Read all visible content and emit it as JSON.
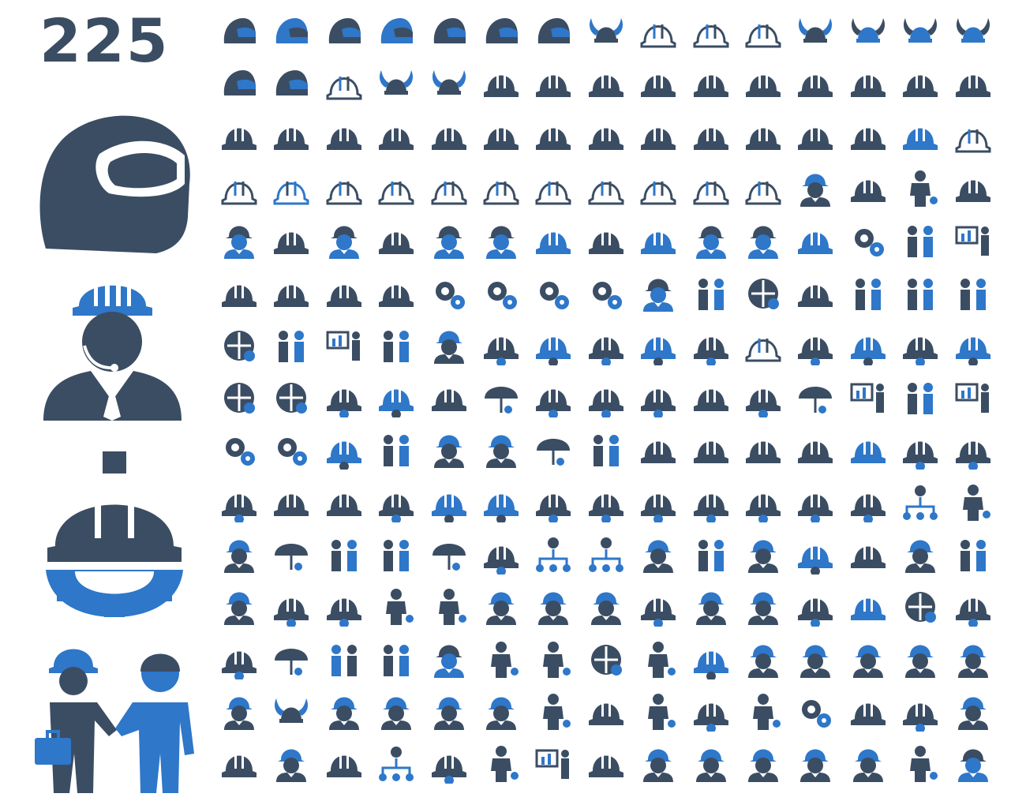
{
  "header": {
    "count": "225"
  },
  "palette": {
    "gray": "#3b4d63",
    "blue": "#2e77c9",
    "white": "#ffffff"
  },
  "big_icons": [
    "motorcycle-helmet",
    "worker-with-headset-and-hard-hat",
    "hard-hat-on-gear",
    "handshake-businessman-and-worker"
  ],
  "grid": {
    "rows": [
      [
        "moto-helmet",
        "moto-helmet-blue-visor",
        "bike-helmet",
        "bike-helmet-blue",
        "jockey-helmet",
        "cap-helmet",
        "jockey-helmet-dark",
        "viking-helmet-rivets",
        "viking-helmet-outline",
        "viking-helmet-outline",
        "viking-helmet-outline",
        "viking-helmet-dark",
        "viking-helmet-blue",
        "viking-helmet-blue-horns",
        "viking-helmet-dark-blue-horns"
      ],
      [
        "knight-helmet",
        "spartan-helmet",
        "viking-horns-outline",
        "viking-horns-dark",
        "viking-horns-dark",
        "hard-hat",
        "hard-hat",
        "hard-hat",
        "hard-hat",
        "hard-hat",
        "hard-hat",
        "hard-hat",
        "hard-hat",
        "hard-hat",
        "hard-hat"
      ],
      [
        "hard-hat",
        "hard-hat",
        "hard-hat",
        "hard-hat",
        "hard-hat",
        "hard-hat-camo",
        "hard-hat",
        "hard-hat",
        "hard-hat",
        "hard-hat",
        "hard-hat",
        "hard-hat",
        "hard-hat",
        "hard-hat-blue-brim",
        "hard-hat-outline"
      ],
      [
        "hard-hat-outline",
        "hard-hat-blue-outline",
        "hard-hat-outline",
        "hard-hat-outline",
        "hard-hat-outline",
        "hard-hat-outline",
        "hard-hat-outline",
        "hard-hat-outline",
        "hard-hat-outline",
        "hard-hat-outline",
        "hard-hat-outline",
        "worker-head-helmet",
        "hard-hat",
        "man-head",
        "hard-hat"
      ],
      [
        "worker-head-blue",
        "hard-hat",
        "worker-head-blue",
        "hard-hat",
        "worker-head-blue",
        "worker-head-blue",
        "hard-hat-blue",
        "hard-hat",
        "hard-hat-blue-brim",
        "worker-head-blue",
        "worker-head-blue",
        "hard-hat-blue-stripes",
        "gear-presenter",
        "ant-workers",
        "presenter-worker"
      ],
      [
        "hard-hat-low",
        "hard-hat-low",
        "hard-hat-low",
        "hard-hat-low",
        "gears-worker",
        "gear-worker",
        "hand-gear",
        "gear-man",
        "user-blue",
        "team-circle",
        "bulb-arrows",
        "helmet-fire",
        "deal-workers",
        "worker-team",
        "cheering-workers"
      ],
      [
        "hands-care",
        "workers-group",
        "presentation-board",
        "teamwork-lift",
        "worker-euro",
        "helmet-gear",
        "helmet-gear-blue",
        "gear-helmet",
        "helmet-gear-blue",
        "helmet-gear",
        "helmet-outline-gear",
        "helmet-gear",
        "helmet-gear-blue",
        "helmet-gear-right",
        "helmet-gear-blue"
      ],
      [
        "laurel-wreath",
        "shield-mask",
        "globe-helmet",
        "globe-helmet-blue",
        "helmet-circle",
        "bell",
        "globe-helmet",
        "globe-helmet",
        "globe-helmet",
        "building-helmet",
        "helmet-gear",
        "umbrella",
        "presentation-building",
        "workers-meeting",
        "presentation-house"
      ],
      [
        "euro-gears",
        "dollar-gears",
        "gear-helmet-blue",
        "workers-chat",
        "euro-worker",
        "dollar-worker",
        "umbrella-rain",
        "euro-workers",
        "rain-helmet",
        "helmet-tools",
        "helmet-tools",
        "laurel-helmet",
        "helmet-blue",
        "helmet-check",
        "helmet-euro"
      ],
      [
        "helmet-dollar",
        "helmet-banner",
        "job-helmet",
        "helmet-euro-coins",
        "helmet-dollar-blue",
        "helmet-euro-blue",
        "helmet-dollar",
        "helmet-rotate",
        "helmet-user",
        "helmet-cash",
        "helmet-dollar",
        "helmet-steering",
        "helmet-hierarchy",
        "head-hierarchy",
        "woman"
      ],
      [
        "worker-headset",
        "parachute",
        "workers-group",
        "handshake",
        "umbrella-dollar",
        "helmet-coins",
        "head-hierarchy",
        "branch-workers",
        "shower-helmet",
        "team-women",
        "worker-warning",
        "helmet-check-blue",
        "cart-helmet",
        "worker-glasses",
        "couple"
      ],
      [
        "worker-bust",
        "helmet-coins",
        "helmet-gears",
        "cheering-man",
        "cheering-man",
        "worker-bust",
        "worker-bust",
        "worker-bust",
        "hierarchy-helmet",
        "worker-flag",
        "worker-glasses",
        "helmet-gear-saw",
        "helmet-blue-big",
        "map-pin-dollar",
        "helmet-search"
      ],
      [
        "search-helmet",
        "umbrella-walker",
        "workers-group-blue",
        "workers-chat",
        "worker-bust-blue",
        "woman-headset",
        "delivery-worker",
        "funnel-worker",
        "businessman",
        "helmet-gears-blue",
        "worker-face",
        "worker-face",
        "worker-face",
        "worker-face",
        "worker-face"
      ],
      [
        "alien-worker",
        "viking-face",
        "alien-worker",
        "alien-worker",
        "alien-worker",
        "alien-worker",
        "doctor-atom",
        "wrench-helmet",
        "strong-man",
        "hierarchy-helmet",
        "bulb-man",
        "runner-gear",
        "tools-helmet",
        "helmet-gear-crack",
        "worker-glasses"
      ],
      [
        "job-helmet",
        "worker-face",
        "wrench-helmet",
        "worker-hierarchy",
        "globe-helmet",
        "professor",
        "worker-chart",
        "cart-helmet",
        "worker-face",
        "alien-worker",
        "worker-face",
        "worker-face",
        "worker-dark",
        "man-head-planet",
        "worker-blue"
      ]
    ]
  }
}
